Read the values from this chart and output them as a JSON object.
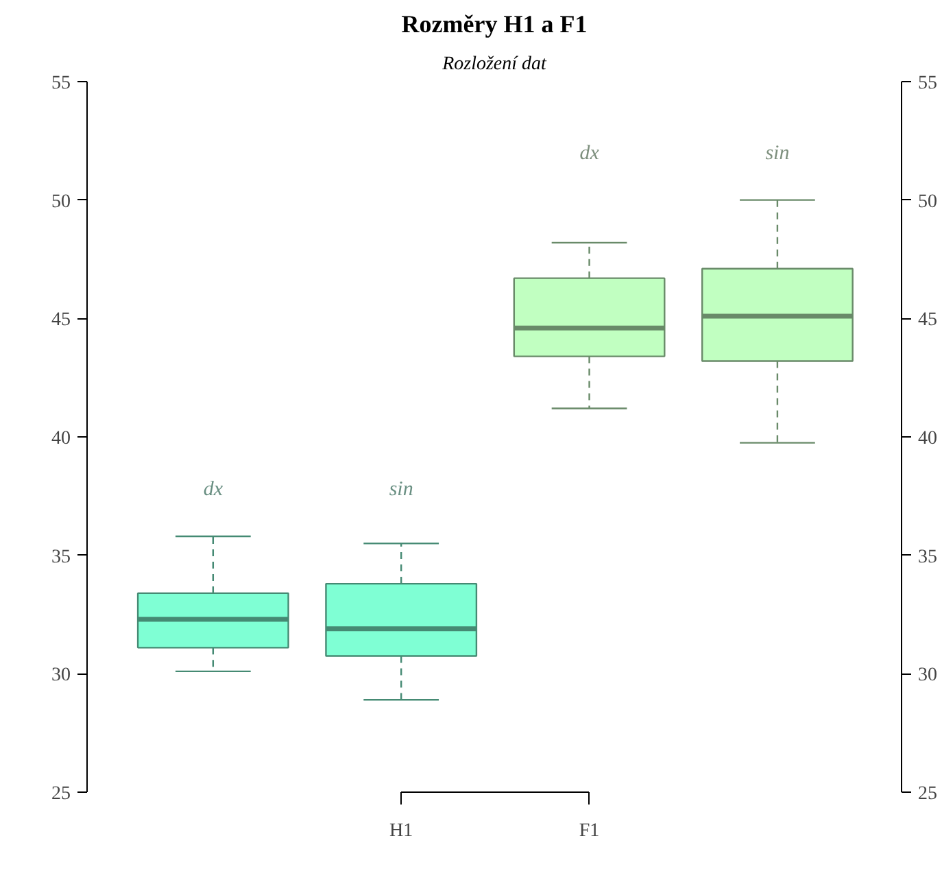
{
  "chart_data": {
    "type": "box",
    "title": "Rozměry H1 a F1",
    "subtitle": "Rozložení dat",
    "categories": [
      null,
      "H1",
      "F1",
      null
    ],
    "colors": [
      "#7fffd4",
      "#7fffd4",
      "#c1ffc1",
      "#c1ffc1"
    ],
    "boxes": [
      {
        "low": 30.1,
        "q1": 31.1,
        "median": 32.3,
        "q3": 33.4,
        "high": 35.8
      },
      {
        "low": 28.9,
        "q1": 30.75,
        "median": 31.9,
        "q3": 33.8,
        "high": 35.5
      },
      {
        "low": 41.2,
        "q1": 43.4,
        "median": 44.6,
        "q3": 46.7,
        "high": 48.2
      },
      {
        "low": 39.75,
        "q1": 43.2,
        "median": 45.1,
        "q3": 47.1,
        "high": 50.0
      }
    ],
    "ylim": [
      25,
      55
    ],
    "yticks": [
      25,
      30,
      35,
      40,
      45,
      50,
      55
    ],
    "y2lim": [
      25,
      55
    ],
    "y2ticks": [
      25,
      30,
      35,
      40,
      45,
      50,
      55
    ],
    "annotations": [
      "dx",
      "sin",
      "dx",
      "sin"
    ]
  }
}
